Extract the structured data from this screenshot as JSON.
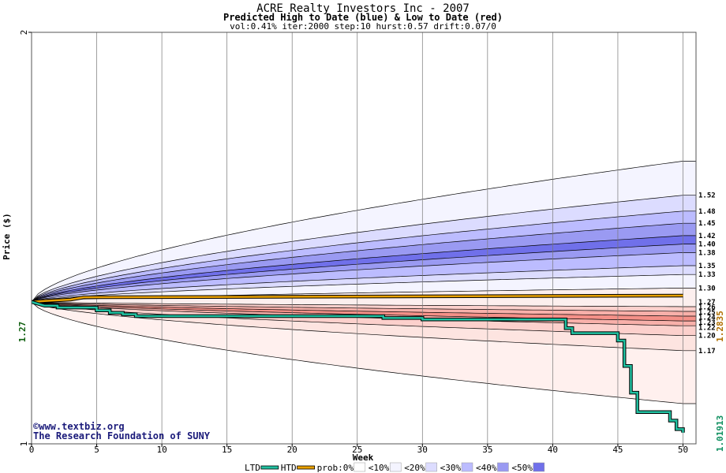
{
  "chart_data": {
    "type": "area",
    "title": "ACRE Realty Investors Inc - 2007",
    "subtitle": "Predicted High to Date (blue) &  Low to Date (red)",
    "params": "vol:0.41% iter:2000 step:10 hurst:0.57 drift:0.07/0",
    "xlabel": "Week",
    "ylabel": "Price ($)",
    "xlim": [
      0,
      51
    ],
    "ylim": [
      1,
      2
    ],
    "y_scale": "log",
    "x_ticks": [
      0,
      5,
      10,
      15,
      20,
      25,
      30,
      35,
      40,
      45,
      50
    ],
    "y_ticks": [
      1,
      2
    ],
    "grid": true,
    "start_price_label": "1.27",
    "start_price": 1.27,
    "high_to_date_label": "1.2835",
    "high_to_date": 1.2835,
    "low_to_date_label": "1.01913",
    "low_to_date": 1.01913,
    "credit": [
      "©www.textbiz.org",
      "The Research Foundation of SUNY"
    ],
    "right_labels": [
      "1.52",
      "1.48",
      "1.45",
      "1.42",
      "1.40",
      "1.38",
      "1.35",
      "1.33",
      "1.30",
      "1.27",
      "1.26",
      "1.25",
      "1.24",
      "1.23",
      "1.22",
      "1.20",
      "1.17"
    ],
    "high_quantiles": [
      {
        "band": "0%",
        "w0": 1.27,
        "w50": 1.61
      },
      {
        "band": "10%",
        "w0": 1.27,
        "w50": 1.52
      },
      {
        "band": "20%",
        "w0": 1.27,
        "w50": 1.48
      },
      {
        "band": "30%",
        "w0": 1.27,
        "w50": 1.45
      },
      {
        "band": "40%",
        "w0": 1.27,
        "w50": 1.42
      },
      {
        "band": "50%",
        "w0": 1.27,
        "w50": 1.4
      },
      {
        "band": "50%",
        "w0": 1.27,
        "w50": 1.38
      },
      {
        "band": "40%",
        "w0": 1.27,
        "w50": 1.35
      },
      {
        "band": "30%",
        "w0": 1.27,
        "w50": 1.33
      },
      {
        "band": "20%",
        "w0": 1.27,
        "w50": 1.3
      }
    ],
    "low_quantiles": [
      {
        "band": "20%",
        "w0": 1.27,
        "w50": 1.26
      },
      {
        "band": "30%",
        "w0": 1.27,
        "w50": 1.25
      },
      {
        "band": "40%",
        "w0": 1.27,
        "w50": 1.24
      },
      {
        "band": "50%",
        "w0": 1.27,
        "w50": 1.23
      },
      {
        "band": "40%",
        "w0": 1.27,
        "w50": 1.22
      },
      {
        "band": "30%",
        "w0": 1.27,
        "w50": 1.2
      },
      {
        "band": "20%",
        "w0": 1.27,
        "w50": 1.17
      },
      {
        "band": "10%",
        "w0": 1.27,
        "w50": 1.07
      }
    ],
    "series": [
      {
        "name": "HTD",
        "color": "#e8a000",
        "points": [
          [
            0,
            1.27
          ],
          [
            1,
            1.272
          ],
          [
            3,
            1.275
          ],
          [
            4,
            1.28
          ],
          [
            50,
            1.2835
          ]
        ]
      },
      {
        "name": "LTD",
        "color": "#20c0a0",
        "points": [
          [
            0,
            1.27
          ],
          [
            1,
            1.262
          ],
          [
            2,
            1.262
          ],
          [
            2,
            1.258
          ],
          [
            5,
            1.258
          ],
          [
            5,
            1.252
          ],
          [
            6,
            1.252
          ],
          [
            6,
            1.247
          ],
          [
            7,
            1.247
          ],
          [
            7,
            1.244
          ],
          [
            8,
            1.244
          ],
          [
            8,
            1.24
          ],
          [
            27,
            1.24
          ],
          [
            27,
            1.236
          ],
          [
            30,
            1.236
          ],
          [
            30,
            1.233
          ],
          [
            41,
            1.233
          ],
          [
            41,
            1.215
          ],
          [
            41.5,
            1.215
          ],
          [
            41.5,
            1.205
          ],
          [
            45,
            1.205
          ],
          [
            45,
            1.19
          ],
          [
            45.5,
            1.19
          ],
          [
            45.5,
            1.14
          ],
          [
            46,
            1.14
          ],
          [
            46,
            1.09
          ],
          [
            46.5,
            1.09
          ],
          [
            46.5,
            1.055
          ],
          [
            49,
            1.055
          ],
          [
            49,
            1.04
          ],
          [
            49.5,
            1.04
          ],
          [
            49.5,
            1.025
          ],
          [
            50,
            1.025
          ],
          [
            50,
            1.01913
          ]
        ]
      }
    ],
    "legend": [
      {
        "label": "LTD",
        "color": "#20c0a0",
        "kind": "line"
      },
      {
        "label": "HTD",
        "color": "#e8a000",
        "kind": "line"
      },
      {
        "label": "prob:0%",
        "color": "#ffffff",
        "kind": "swatch"
      },
      {
        "label": "<10%",
        "color": "#f4f4ff",
        "kind": "swatch"
      },
      {
        "label": "<20%",
        "color": "#dcdcff",
        "kind": "swatch"
      },
      {
        "label": "<30%",
        "color": "#bcbcff",
        "kind": "swatch"
      },
      {
        "label": "<40%",
        "color": "#9a9af2",
        "kind": "swatch"
      },
      {
        "label": "<50%",
        "color": "#7070ea",
        "kind": "swatch"
      }
    ],
    "colors": {
      "high_bands": [
        "#f4f4ff",
        "#dcdcff",
        "#bcbcff",
        "#9a9af2",
        "#7070ea"
      ],
      "low_bands": [
        "#fff0ee",
        "#fcd0cc",
        "#f8b0aa",
        "#f49088",
        "#f07068"
      ],
      "start_label": "#106010",
      "htd_label": "#b07000",
      "ltd_label": "#109060"
    }
  }
}
